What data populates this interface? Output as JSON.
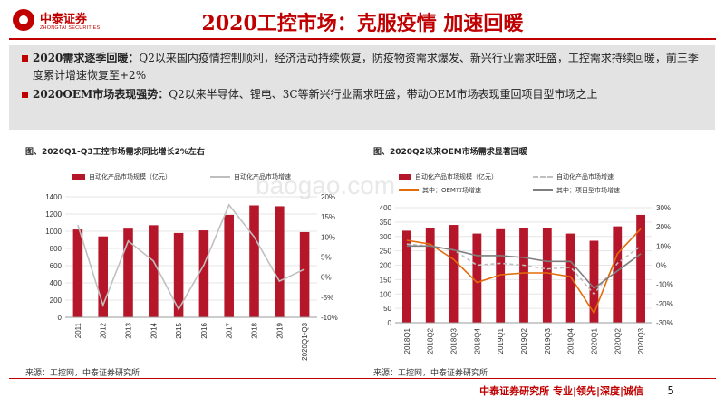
{
  "logo": {
    "cn": "中泰证券",
    "en": "ZHONGTAI SECURITIES"
  },
  "title": "2020工控市场：克服疫情 加速回暖",
  "bullets": [
    {
      "lead": "2020需求逐季回暖：",
      "text": "Q2以来国内疫情控制顺利，经济活动持续恢复，防疫物资需求爆发、新兴行业需求旺盛，工控需求持续回暖，前三季度累计增速恢复至+2%"
    },
    {
      "lead": "2020OEM市场表现强势：",
      "text": "Q2以来半导体、锂电、3C等新兴行业需求旺盛，带动OEM市场表现重回项目型市场之上"
    }
  ],
  "watermark": "baogao.com",
  "chart_data": [
    {
      "type": "bar+line",
      "title": "图、2020Q1-Q3工控市场需求同比增长2%左右",
      "categories": [
        "2011",
        "2012",
        "2013",
        "2014",
        "2015",
        "2016",
        "2017",
        "2018",
        "2019",
        "2020Q1-Q3"
      ],
      "series": [
        {
          "name": "自动化产品市场规模（亿元）",
          "type": "bar",
          "axis": "left",
          "color": "#b5162a",
          "values": [
            1020,
            940,
            1030,
            1070,
            980,
            1010,
            1190,
            1300,
            1290,
            990
          ]
        },
        {
          "name": "自动化产品市场增速",
          "type": "line",
          "axis": "right",
          "color": "#bfbfbf",
          "values": [
            13,
            -7,
            9,
            4,
            -8,
            3,
            18,
            10,
            -1,
            2
          ]
        }
      ],
      "y_left": {
        "min": 0,
        "max": 1400,
        "ticks": [
          0,
          200,
          400,
          600,
          800,
          1000,
          1200,
          1400
        ]
      },
      "y_right": {
        "min": -10,
        "max": 20,
        "ticks": [
          "-10%",
          "-5%",
          "0%",
          "5%",
          "10%",
          "15%",
          "20%"
        ]
      },
      "source": "来源：工控网，中泰证券研究所"
    },
    {
      "type": "bar+line",
      "title": "图、2020Q2以来OEM市场需求显著回暖",
      "categories": [
        "2018Q1",
        "2018Q2",
        "2018Q3",
        "2018Q4",
        "2019Q1",
        "2019Q2",
        "2019Q3",
        "2019Q4",
        "2020Q1",
        "2020Q2",
        "2020Q3"
      ],
      "series": [
        {
          "name": "自动化产品市场规模（亿元）",
          "type": "bar",
          "axis": "left",
          "color": "#b5162a",
          "values": [
            320,
            330,
            340,
            310,
            325,
            330,
            330,
            310,
            285,
            335,
            375
          ]
        },
        {
          "name": "自动化产品市场增速",
          "type": "line",
          "axis": "right",
          "color": "#bfbfbf",
          "dash": true,
          "values": [
            11,
            10,
            8,
            0,
            1,
            0,
            -2,
            -1,
            -15,
            1,
            10
          ]
        },
        {
          "name": "其中：OEM市场增速",
          "type": "line",
          "axis": "right",
          "color": "#e36c0a",
          "values": [
            13,
            11,
            3,
            -9,
            -5,
            -4,
            -4,
            -6,
            -25,
            6,
            19
          ]
        },
        {
          "name": "其中：项目型市场增速",
          "type": "line",
          "axis": "right",
          "color": "#7f7f7f",
          "values": [
            10,
            10,
            8,
            5,
            5,
            4,
            2,
            2,
            -12,
            -3,
            6
          ]
        }
      ],
      "y_left": {
        "min": 0,
        "max": 400,
        "ticks": [
          0,
          50,
          100,
          150,
          200,
          250,
          300,
          350,
          400
        ]
      },
      "y_right": {
        "min": -30,
        "max": 30,
        "ticks": [
          "-30%",
          "-20%",
          "-10%",
          "0%",
          "10%",
          "20%",
          "30%"
        ]
      },
      "source": "来源：工控网，中泰证券研究所"
    }
  ],
  "footer": {
    "slogan": "中泰证券研究所 专业|领先|深度|诚信",
    "page": "5"
  }
}
